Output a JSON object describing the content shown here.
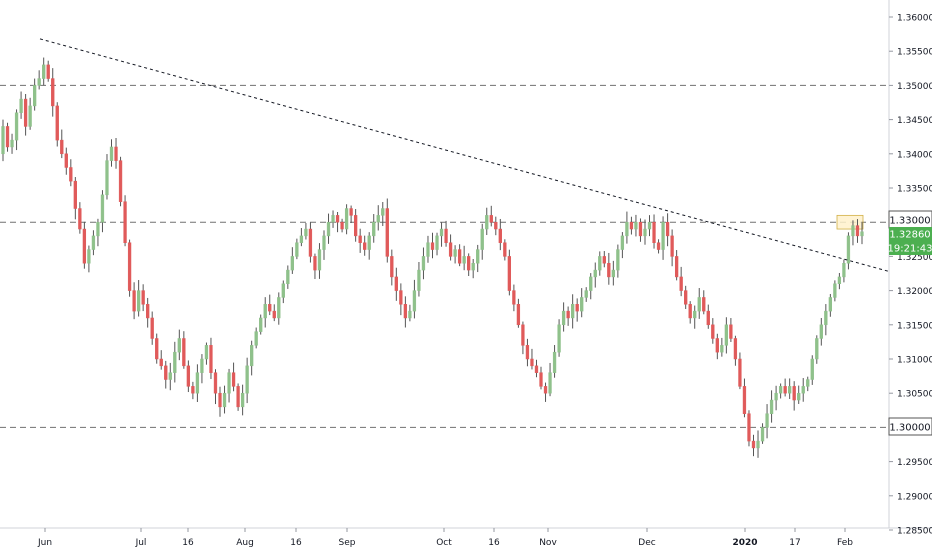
{
  "chart_data": {
    "type": "candlestick",
    "title": "",
    "xlabel": "",
    "ylabel": "",
    "ylim": [
      1.2845,
      1.3625
    ],
    "grid": false,
    "y_ticks": [
      "1.28500",
      "1.29000",
      "1.29500",
      "1.30000",
      "1.30500",
      "1.31000",
      "1.31500",
      "1.32000",
      "1.32500",
      "1.33000",
      "1.33500",
      "1.34000",
      "1.34500",
      "1.35000",
      "1.35500",
      "1.36000"
    ],
    "x_ticks": [
      "Jun",
      "Jul",
      "16",
      "Aug",
      "16",
      "Sep",
      "Oct",
      "16",
      "Nov",
      "Dec",
      "2020",
      "17",
      "Feb"
    ],
    "price_labels": {
      "level_box": "1.33000",
      "last_price": "1.32860",
      "countdown": "19:21:43",
      "level_low": "1.30000"
    },
    "horizontal_levels": [
      1.35,
      1.33,
      1.3
    ],
    "trendline": {
      "from": [
        "late May 2019",
        1.3568
      ],
      "to": [
        "early Feb 2020",
        1.3228
      ]
    },
    "highlight_zone": [
      1.329,
      1.331
    ],
    "colors": {
      "up": "#8fc18b",
      "down": "#e05a5a",
      "wick": "#555555",
      "level": "#707070",
      "last_price": "#4caf50",
      "zone": "#fff2cc"
    },
    "closes": [
      1.344,
      1.341,
      1.342,
      1.346,
      1.348,
      1.344,
      1.347,
      1.35,
      1.351,
      1.353,
      1.351,
      1.347,
      1.342,
      1.34,
      1.338,
      1.336,
      1.332,
      1.329,
      1.324,
      1.326,
      1.328,
      1.33,
      1.334,
      1.339,
      1.341,
      1.339,
      1.333,
      1.327,
      1.32,
      1.317,
      1.32,
      1.318,
      1.316,
      1.313,
      1.31,
      1.309,
      1.307,
      1.308,
      1.311,
      1.313,
      1.309,
      1.306,
      1.305,
      1.308,
      1.31,
      1.312,
      1.308,
      1.305,
      1.303,
      1.305,
      1.308,
      1.306,
      1.303,
      1.305,
      1.309,
      1.312,
      1.314,
      1.316,
      1.318,
      1.317,
      1.316,
      1.319,
      1.321,
      1.323,
      1.325,
      1.327,
      1.328,
      1.329,
      1.325,
      1.323,
      1.326,
      1.328,
      1.33,
      1.331,
      1.33,
      1.329,
      1.332,
      1.331,
      1.328,
      1.327,
      1.326,
      1.328,
      1.33,
      1.331,
      1.332,
      1.325,
      1.322,
      1.32,
      1.318,
      1.316,
      1.317,
      1.32,
      1.323,
      1.325,
      1.327,
      1.326,
      1.328,
      1.329,
      1.327,
      1.325,
      1.326,
      1.324,
      1.325,
      1.323,
      1.324,
      1.326,
      1.329,
      1.331,
      1.33,
      1.329,
      1.327,
      1.325,
      1.32,
      1.318,
      1.315,
      1.312,
      1.31,
      1.309,
      1.308,
      1.306,
      1.305,
      1.308,
      1.311,
      1.315,
      1.317,
      1.316,
      1.318,
      1.317,
      1.319,
      1.32,
      1.322,
      1.323,
      1.325,
      1.324,
      1.322,
      1.323,
      1.326,
      1.328,
      1.33,
      1.329,
      1.33,
      1.328,
      1.329,
      1.33,
      1.327,
      1.326,
      1.33,
      1.328,
      1.325,
      1.322,
      1.32,
      1.318,
      1.316,
      1.317,
      1.319,
      1.317,
      1.315,
      1.313,
      1.311,
      1.312,
      1.315,
      1.313,
      1.31,
      1.306,
      1.302,
      1.298,
      1.297,
      1.298,
      1.3,
      1.302,
      1.304,
      1.305,
      1.306,
      1.305,
      1.306,
      1.304,
      1.305,
      1.306,
      1.307,
      1.31,
      1.313,
      1.315,
      1.317,
      1.319,
      1.321,
      1.322,
      1.324,
      1.328,
      1.3295,
      1.328,
      1.3286
    ]
  }
}
